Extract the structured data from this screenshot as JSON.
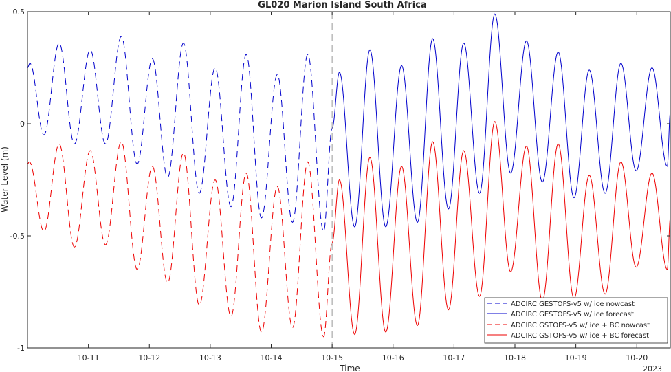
{
  "chart_data": {
    "type": "line",
    "title": "GL020 Marion Island South Africa",
    "xlabel": "Time",
    "ylabel": "Water Level (m)",
    "year_label": "2023",
    "xlim": [
      10.0,
      20.55
    ],
    "ylim": [
      -1.0,
      0.5
    ],
    "x_ticks": [
      11,
      12,
      13,
      14,
      15,
      16,
      17,
      18,
      19,
      20
    ],
    "x_tick_labels": [
      "10-11",
      "10-12",
      "10-13",
      "10-14",
      "10-15",
      "10-16",
      "10-17",
      "10-18",
      "10-19",
      "10-20"
    ],
    "y_ticks": [
      -1,
      -0.5,
      0,
      0.5
    ],
    "y_tick_labels": [
      "-1",
      "-0.5",
      "0",
      "0.5"
    ],
    "grid": false,
    "legend_position": "bottom-right",
    "nowcast_forecast_divider_x": 15.0,
    "colors": {
      "blue": "#0000cc",
      "red": "#ee0000"
    },
    "series": [
      {
        "name": "ADCIRC GESTOFS-v5 w/ ice nowcast",
        "color": "#0000cc",
        "dash": true,
        "extrema": [
          [
            10.0,
            0.25
          ],
          [
            10.04,
            0.27
          ],
          [
            10.27,
            -0.05
          ],
          [
            10.52,
            0.36
          ],
          [
            10.77,
            -0.09
          ],
          [
            11.03,
            0.33
          ],
          [
            11.28,
            -0.09
          ],
          [
            11.54,
            0.39
          ],
          [
            11.8,
            -0.18
          ],
          [
            12.05,
            0.29
          ],
          [
            12.3,
            -0.24
          ],
          [
            12.56,
            0.36
          ],
          [
            12.82,
            -0.31
          ],
          [
            13.08,
            0.25
          ],
          [
            13.34,
            -0.37
          ],
          [
            13.59,
            0.31
          ],
          [
            13.84,
            -0.42
          ],
          [
            14.1,
            0.22
          ],
          [
            14.35,
            -0.44
          ],
          [
            14.6,
            0.31
          ],
          [
            14.86,
            -0.48
          ],
          [
            15.0,
            -0.02
          ]
        ]
      },
      {
        "name": "ADCIRC GESTOFS-v5 w/ ice forecast",
        "color": "#0000cc",
        "dash": false,
        "extrema": [
          [
            15.0,
            -0.02
          ],
          [
            15.12,
            0.23
          ],
          [
            15.37,
            -0.46
          ],
          [
            15.62,
            0.33
          ],
          [
            15.88,
            -0.46
          ],
          [
            16.14,
            0.26
          ],
          [
            16.4,
            -0.44
          ],
          [
            16.65,
            0.38
          ],
          [
            16.91,
            -0.38
          ],
          [
            17.16,
            0.36
          ],
          [
            17.42,
            -0.31
          ],
          [
            17.67,
            0.49
          ],
          [
            17.93,
            -0.22
          ],
          [
            18.19,
            0.37
          ],
          [
            18.45,
            -0.26
          ],
          [
            18.71,
            0.32
          ],
          [
            18.97,
            -0.33
          ],
          [
            19.22,
            0.24
          ],
          [
            19.48,
            -0.31
          ],
          [
            19.74,
            0.27
          ],
          [
            19.99,
            -0.21
          ],
          [
            20.25,
            0.25
          ],
          [
            20.5,
            -0.19
          ],
          [
            20.55,
            0.05
          ]
        ]
      },
      {
        "name": "ADCIRC GSTOFS-v5 w/ ice + BC nowcast",
        "color": "#ee0000",
        "dash": true,
        "extrema": [
          [
            10.0,
            -0.18
          ],
          [
            10.03,
            -0.17
          ],
          [
            10.27,
            -0.48
          ],
          [
            10.52,
            -0.09
          ],
          [
            10.77,
            -0.55
          ],
          [
            11.03,
            -0.12
          ],
          [
            11.28,
            -0.54
          ],
          [
            11.54,
            -0.08
          ],
          [
            11.8,
            -0.65
          ],
          [
            12.05,
            -0.19
          ],
          [
            12.3,
            -0.71
          ],
          [
            12.56,
            -0.13
          ],
          [
            12.82,
            -0.81
          ],
          [
            13.08,
            -0.25
          ],
          [
            13.34,
            -0.86
          ],
          [
            13.59,
            -0.22
          ],
          [
            13.84,
            -0.93
          ],
          [
            14.1,
            -0.28
          ],
          [
            14.35,
            -0.91
          ],
          [
            14.6,
            -0.17
          ],
          [
            14.86,
            -0.95
          ],
          [
            15.0,
            -0.53
          ]
        ]
      },
      {
        "name": "ADCIRC GSTOFS-v5 w/ ice + BC forecast",
        "color": "#ee0000",
        "dash": false,
        "extrema": [
          [
            15.0,
            -0.53
          ],
          [
            15.12,
            -0.25
          ],
          [
            15.37,
            -0.94
          ],
          [
            15.62,
            -0.15
          ],
          [
            15.88,
            -0.93
          ],
          [
            16.14,
            -0.19
          ],
          [
            16.4,
            -0.9
          ],
          [
            16.65,
            -0.08
          ],
          [
            16.91,
            -0.83
          ],
          [
            17.16,
            -0.12
          ],
          [
            17.42,
            -0.77
          ],
          [
            17.67,
            0.01
          ],
          [
            17.93,
            -0.66
          ],
          [
            18.19,
            -0.1
          ],
          [
            18.45,
            -0.79
          ],
          [
            18.71,
            -0.09
          ],
          [
            18.97,
            -0.78
          ],
          [
            19.22,
            -0.23
          ],
          [
            19.48,
            -0.76
          ],
          [
            19.74,
            -0.17
          ],
          [
            19.99,
            -0.64
          ],
          [
            20.25,
            -0.22
          ],
          [
            20.5,
            -0.65
          ],
          [
            20.55,
            -0.42
          ]
        ]
      }
    ]
  }
}
